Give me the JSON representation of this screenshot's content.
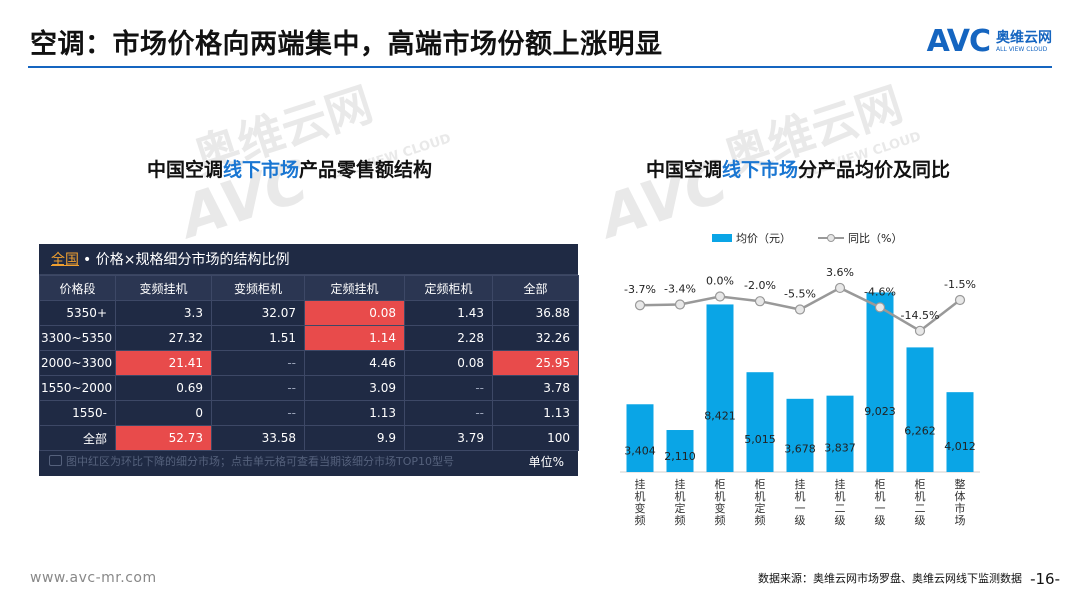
{
  "header": {
    "title": "空调：市场价格向两端集中，高端市场份额上涨明显",
    "brand_logo": "AVC",
    "brand_cn": "奥维云网",
    "brand_en": "ALL VIEW CLOUD"
  },
  "watermark": {
    "cn": "奥维云网",
    "en": "ALL VIEW CLOUD",
    "logo": "AVC"
  },
  "left": {
    "title_pre": "中国空调",
    "title_hl": "线下市场",
    "title_post": "产品零售额结构",
    "table": {
      "link": "全国",
      "caption": "• 价格×规格细分市场的结构比例",
      "columns": [
        "价格段",
        "变频挂机",
        "变频柜机",
        "定频挂机",
        "定频柜机",
        "全部"
      ],
      "rows": [
        [
          "5350+",
          "3.3",
          "32.07",
          "0.08",
          "1.43",
          "36.88"
        ],
        [
          "3300~5350",
          "27.32",
          "1.51",
          "1.14",
          "2.28",
          "32.26"
        ],
        [
          "2000~3300",
          "21.41",
          "--",
          "4.46",
          "0.08",
          "25.95"
        ],
        [
          "1550~2000",
          "0.69",
          "--",
          "3.09",
          "--",
          "3.78"
        ],
        [
          "1550-",
          "0",
          "--",
          "1.13",
          "--",
          "1.13"
        ],
        [
          "全部",
          "52.73",
          "33.58",
          "9.9",
          "3.79",
          "100"
        ]
      ],
      "highlighted": [
        [
          0,
          3
        ],
        [
          1,
          3
        ],
        [
          2,
          1
        ],
        [
          2,
          5
        ],
        [
          5,
          1
        ]
      ],
      "note": "图中红区为环比下降的细分市场；点击单元格可查看当期该细分市场TOP10型号",
      "unit": "单位%",
      "colors": {
        "bg": "#1f2a44",
        "header": "#2b3652",
        "red": "#e84b4b",
        "link": "#f0a030"
      }
    }
  },
  "right": {
    "title_pre": "中国空调",
    "title_hl": "线下市场",
    "title_post": "分产品均价及同比"
  },
  "chart_data": {
    "type": "bar",
    "categories": [
      "挂机变频",
      "挂机定频",
      "柜机变频",
      "柜机定频",
      "挂机一级",
      "挂机二级",
      "柜机一级",
      "柜机二级",
      "整体市场"
    ],
    "series": [
      {
        "name": "均价（元）",
        "type": "bar",
        "values": [
          3404,
          2110,
          8421,
          5015,
          3678,
          3837,
          9023,
          6262,
          4012
        ],
        "labels": [
          "3,404",
          "2,110",
          "8,421",
          "5,015",
          "3,678",
          "3,837",
          "9,023",
          "6,262",
          "4,012"
        ],
        "color": "#0aa5e6"
      },
      {
        "name": "同比（%）",
        "type": "line",
        "values": [
          -3.7,
          -3.4,
          0.0,
          -2.0,
          -5.5,
          3.6,
          -4.6,
          -14.5,
          -1.5
        ],
        "labels": [
          "-3.7%",
          "-3.4%",
          "0.0%",
          "-2.0%",
          "-5.5%",
          "3.6%",
          "-4.6%",
          "-14.5%",
          "-1.5%"
        ],
        "color": "#999999"
      }
    ]
  },
  "footer": {
    "url": "www.avc-mr.com",
    "source": "数据来源：奥维云网市场罗盘、奥维云网线下监测数据",
    "page": "-16-"
  }
}
